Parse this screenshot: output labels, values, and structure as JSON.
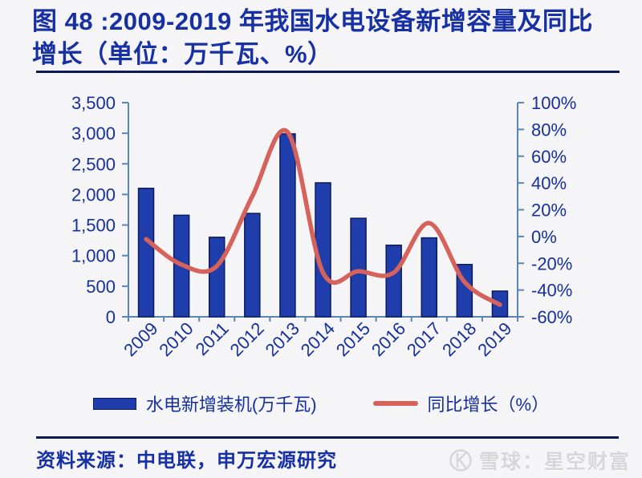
{
  "header": {
    "title_line1": "图 48 :2009-2019 年我国水电设备新增容量及同比",
    "title_line2": "增长（单位：万千瓦、%）"
  },
  "footer": {
    "source": "资料来源：中电联，申万宏源研究",
    "watermark": "雪球：星空财富"
  },
  "colors": {
    "bar": "#1F3EAC",
    "bar_border": "#0C1C5C",
    "line": "#D5625B",
    "axis": "#5A85B8",
    "label": "#16309C",
    "title": "#1730A3",
    "rule": "#0E1A52",
    "watermark": "#D7D7DA",
    "background": "#F5F5F7"
  },
  "chart_data": {
    "type": "bar",
    "subtype": "combo bar+line, dual axis",
    "title": "2009-2019 年我国水电设备新增容量及同比增长（单位：万千瓦、%）",
    "categories": [
      "2009",
      "2010",
      "2011",
      "2012",
      "2013",
      "2014",
      "2015",
      "2016",
      "2017",
      "2018",
      "2019"
    ],
    "series": [
      {
        "name": "水电新增装机(万千瓦)",
        "type": "bar",
        "axis": "left",
        "values": [
          2100,
          1660,
          1300,
          1690,
          2990,
          2190,
          1610,
          1170,
          1290,
          855,
          420
        ]
      },
      {
        "name": "同比增长（%）",
        "type": "line",
        "axis": "right",
        "values": [
          -2,
          -21,
          -22,
          30,
          78,
          -27,
          -26,
          -27,
          10,
          -34,
          -51
        ]
      }
    ],
    "left_axis": {
      "min": 0,
      "max": 3500,
      "step": 500,
      "tick_labels": [
        "0",
        "500",
        "1,000",
        "1,500",
        "2,000",
        "2,500",
        "3,000",
        "3,500"
      ]
    },
    "right_axis": {
      "min": -60,
      "max": 100,
      "step": 20,
      "tick_labels": [
        "-60%",
        "-40%",
        "-20%",
        "0%",
        "20%",
        "40%",
        "60%",
        "80%",
        "100%"
      ]
    },
    "legend_position": "bottom",
    "grid": false
  }
}
